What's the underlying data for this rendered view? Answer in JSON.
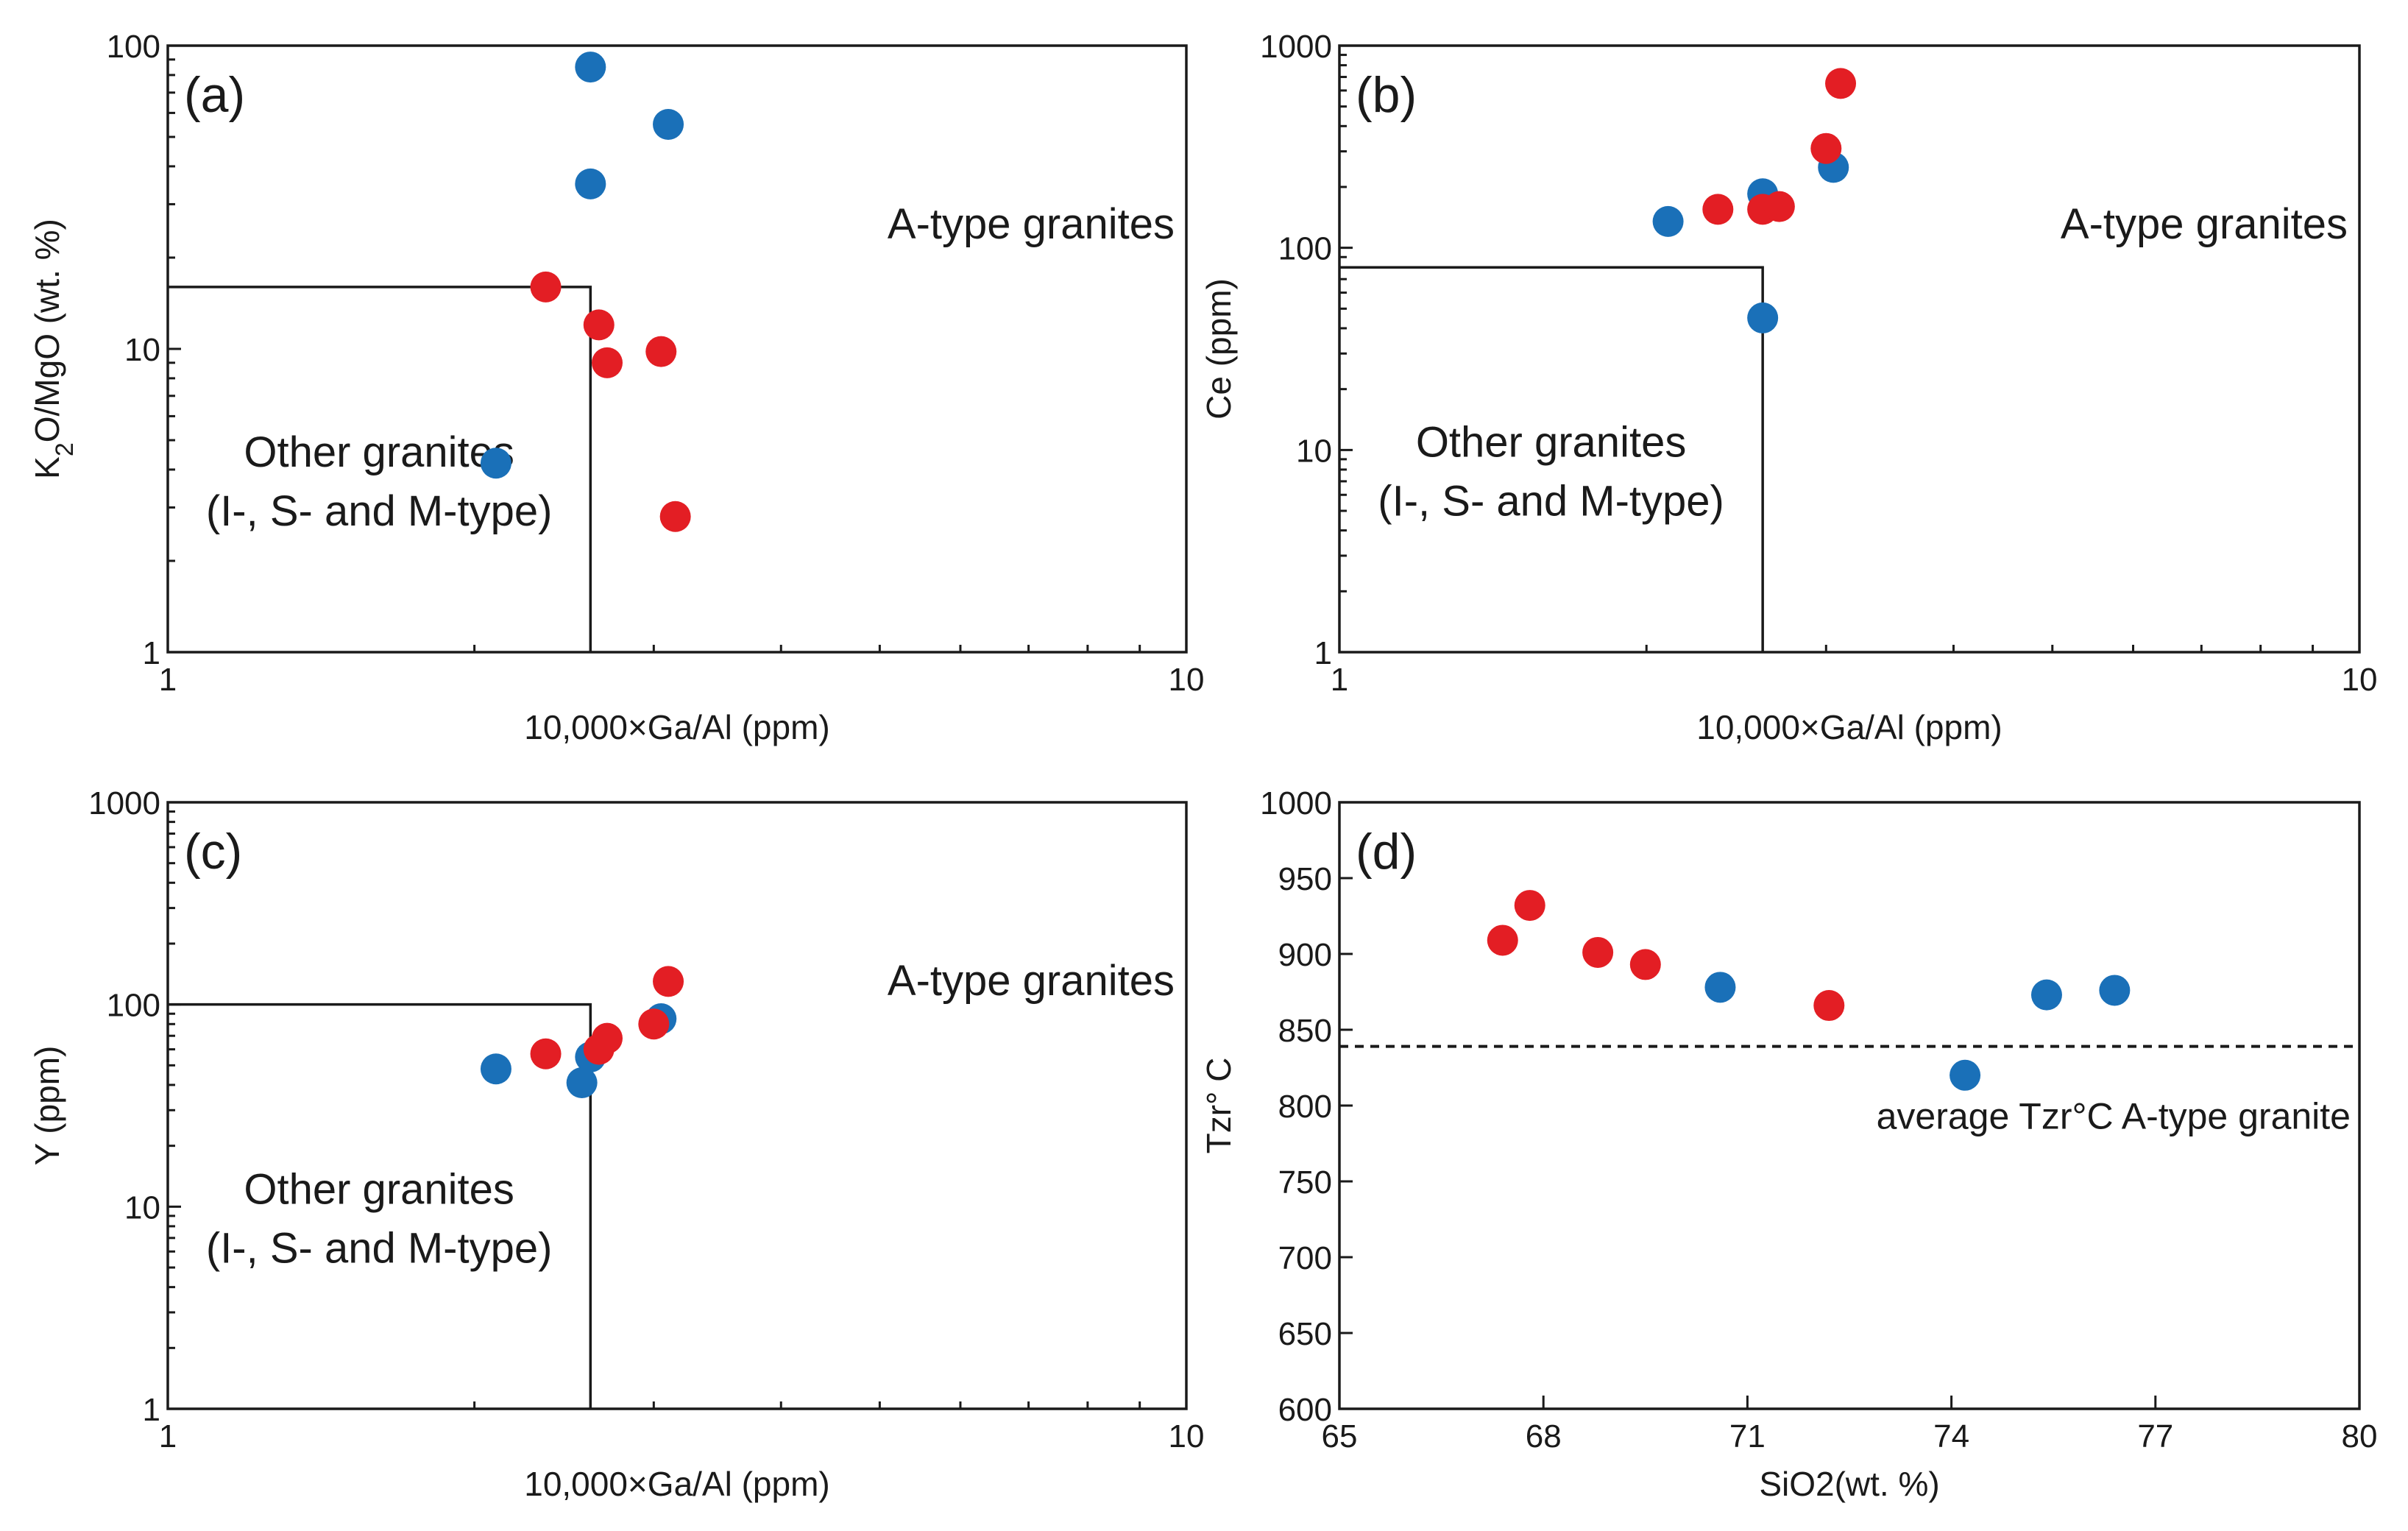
{
  "colors": {
    "blue": "#1a70b8",
    "red": "#e31e24",
    "axis": "#1a1a1a"
  },
  "chart_data": [
    {
      "type": "scatter",
      "panel": "(a)",
      "xscale": "log",
      "yscale": "log",
      "xlim": [
        1,
        10
      ],
      "ylim": [
        1,
        100
      ],
      "xlabel": "10,000×Ga/Al (ppm)",
      "ylabel_main": "K",
      "ylabel_sub": "2",
      "ylabel_rest": "O/MgO (wt. %)",
      "xticks": [
        1,
        10
      ],
      "xtick_labels": [
        "1",
        "10"
      ],
      "yticks": [
        1,
        10,
        100
      ],
      "ytick_labels": [
        "1",
        "10",
        "100"
      ],
      "region_box": {
        "x_max": 2.6,
        "y_max": 16
      },
      "region_label": [
        "Other granites",
        "(I-, S- and M-type)"
      ],
      "area_label": "A-type granites",
      "series": [
        {
          "name": "blue",
          "color": "#1a70b8",
          "points": [
            [
              2.1,
              4.2
            ],
            [
              2.6,
              85
            ],
            [
              3.1,
              55
            ],
            [
              2.6,
              35
            ]
          ]
        },
        {
          "name": "red",
          "color": "#e31e24",
          "points": [
            [
              2.35,
              16
            ],
            [
              2.65,
              12
            ],
            [
              2.7,
              9
            ],
            [
              3.05,
              9.8
            ],
            [
              3.15,
              2.8
            ]
          ]
        }
      ]
    },
    {
      "type": "scatter",
      "panel": "(b)",
      "xscale": "log",
      "yscale": "log",
      "xlim": [
        1,
        10
      ],
      "ylim": [
        1,
        1000
      ],
      "xlabel": "10,000×Ga/Al (ppm)",
      "ylabel": "Ce (ppm)",
      "xticks": [
        1,
        10
      ],
      "xtick_labels": [
        "1",
        "10"
      ],
      "yticks": [
        1,
        10,
        100,
        1000
      ],
      "ytick_labels": [
        "1",
        "10",
        "100",
        "1000"
      ],
      "region_box": {
        "x_max": 2.6,
        "y_max": 80
      },
      "region_label": [
        "Other granites",
        "(I-, S- and M-type)"
      ],
      "area_label": "A-type granites",
      "series": [
        {
          "name": "blue",
          "color": "#1a70b8",
          "points": [
            [
              2.1,
              135
            ],
            [
              2.6,
              185
            ],
            [
              2.6,
              45
            ],
            [
              3.05,
              250
            ]
          ]
        },
        {
          "name": "red",
          "color": "#e31e24",
          "points": [
            [
              2.35,
              155
            ],
            [
              2.6,
              155
            ],
            [
              2.7,
              160
            ],
            [
              3.0,
              310
            ],
            [
              3.1,
              650
            ]
          ]
        }
      ]
    },
    {
      "type": "scatter",
      "panel": "(c)",
      "xscale": "log",
      "yscale": "log",
      "xlim": [
        1,
        10
      ],
      "ylim": [
        1,
        1000
      ],
      "xlabel": "10,000×Ga/Al (ppm)",
      "ylabel": "Y (ppm)",
      "xticks": [
        1,
        10
      ],
      "xtick_labels": [
        "1",
        "10"
      ],
      "yticks": [
        1,
        10,
        100,
        1000
      ],
      "ytick_labels": [
        "1",
        "10",
        "100",
        "1000"
      ],
      "region_box": {
        "x_max": 2.6,
        "y_max": 100
      },
      "region_label": [
        "Other granites",
        "(I-, S- and M-type)"
      ],
      "area_label": "A-type granites",
      "series": [
        {
          "name": "blue",
          "color": "#1a70b8",
          "points": [
            [
              2.1,
              48
            ],
            [
              2.6,
              55
            ],
            [
              2.55,
              41
            ],
            [
              3.05,
              85
            ]
          ]
        },
        {
          "name": "red",
          "color": "#e31e24",
          "points": [
            [
              2.35,
              57
            ],
            [
              2.65,
              60
            ],
            [
              2.7,
              68
            ],
            [
              3.0,
              80
            ],
            [
              3.1,
              130
            ]
          ]
        }
      ]
    },
    {
      "type": "scatter",
      "panel": "(d)",
      "xscale": "linear",
      "yscale": "linear",
      "xlim": [
        65,
        80
      ],
      "ylim": [
        600,
        1000
      ],
      "xlabel": "SiO2(wt. %)",
      "ylabel": "Tzr° C",
      "xticks": [
        65,
        68,
        71,
        74,
        77,
        80
      ],
      "xtick_labels": [
        "65",
        "68",
        "71",
        "74",
        "77",
        "80"
      ],
      "yticks": [
        600,
        650,
        700,
        750,
        800,
        850,
        900,
        950,
        1000
      ],
      "ytick_labels": [
        "600",
        "650",
        "700",
        "750",
        "800",
        "850",
        "900",
        "950",
        "1000"
      ],
      "reference_line": {
        "y": 839,
        "label": "average Tzr°C A-type granite"
      },
      "series": [
        {
          "name": "blue",
          "color": "#1a70b8",
          "points": [
            [
              70.6,
              878
            ],
            [
              74.2,
              820
            ],
            [
              75.4,
              873
            ],
            [
              76.4,
              876
            ]
          ]
        },
        {
          "name": "red",
          "color": "#e31e24",
          "points": [
            [
              67.4,
              909
            ],
            [
              67.8,
              932
            ],
            [
              68.8,
              901
            ],
            [
              69.5,
              893
            ],
            [
              72.2,
              866
            ]
          ]
        }
      ]
    }
  ]
}
